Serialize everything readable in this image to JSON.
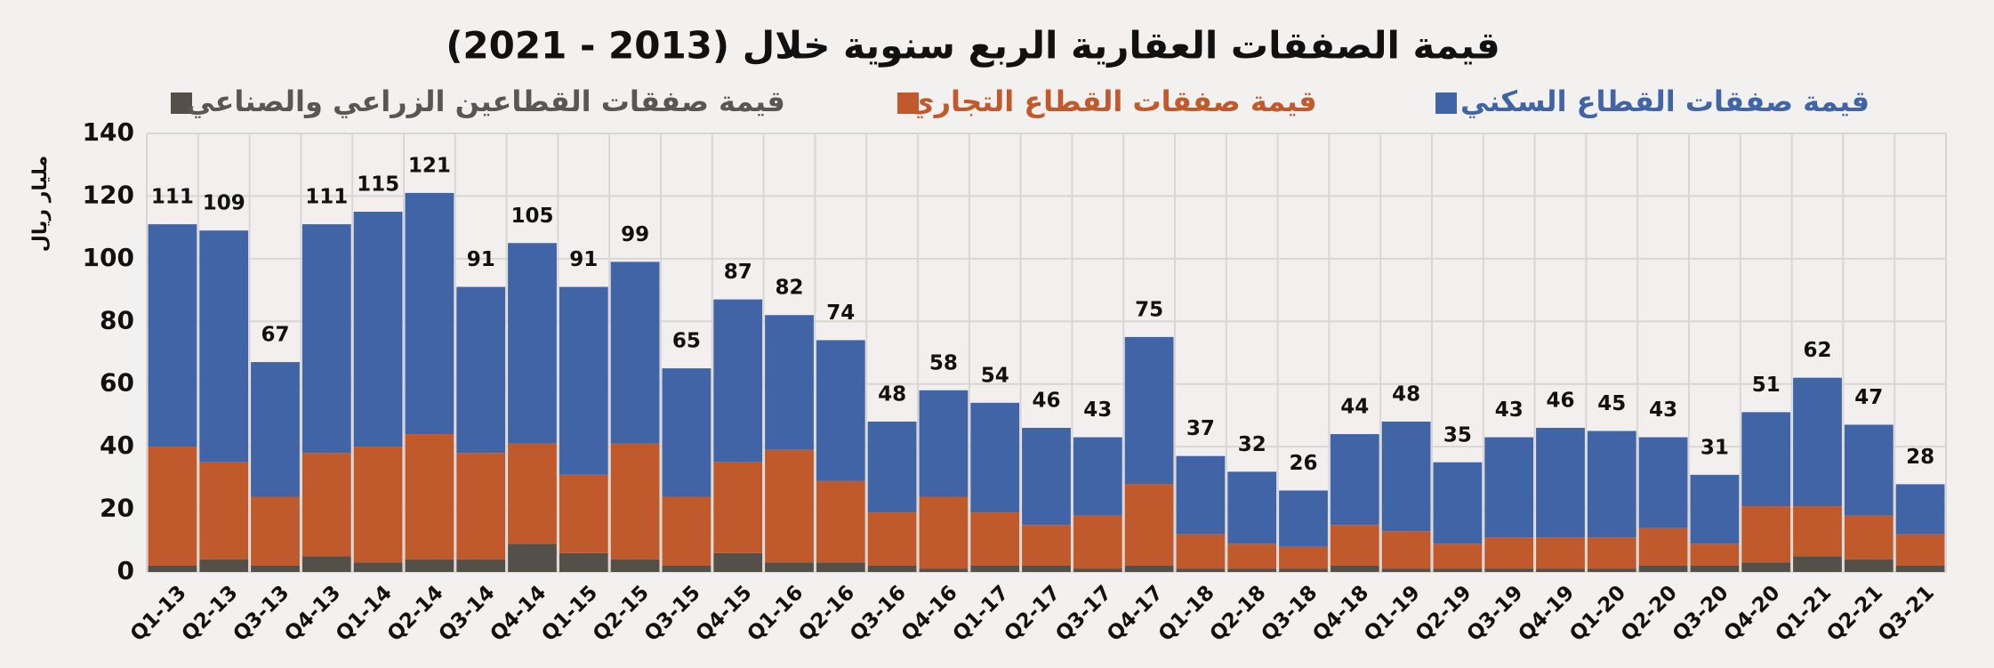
{
  "chart_data": {
    "type": "stacked_bar",
    "title": "قيمة الصفقات العقارية الربع سنوية خلال (2013 - 2021)",
    "y_label": "مليار ريال",
    "categories": [
      "Q1-13",
      "Q2-13",
      "Q3-13",
      "Q4-13",
      "Q1-14",
      "Q2-14",
      "Q3-14",
      "Q4-14",
      "Q1-15",
      "Q2-15",
      "Q3-15",
      "Q4-15",
      "Q1-16",
      "Q2-16",
      "Q3-16",
      "Q4-16",
      "Q1-17",
      "Q2-17",
      "Q3-17",
      "Q4-17",
      "Q1-18",
      "Q2-18",
      "Q3-18",
      "Q4-18",
      "Q1-19",
      "Q2-19",
      "Q3-19",
      "Q4-19",
      "Q1-20",
      "Q2-20",
      "Q3-20",
      "Q4-20",
      "Q1-21",
      "Q2-21",
      "Q3-21"
    ],
    "series": [
      {
        "name": "قيمة صفقات القطاعين الزراعي والصناعي",
        "color": "#545049",
        "values": [
          2,
          4,
          2,
          5,
          3,
          4,
          4,
          9,
          6,
          4,
          2,
          6,
          3,
          3,
          2,
          1,
          2,
          2,
          1,
          2,
          1,
          1,
          1,
          2,
          1,
          1,
          1,
          1,
          1,
          2,
          2,
          3,
          5,
          4,
          2
        ]
      },
      {
        "name": "قيمة صفقات القطاع التجاري",
        "color": "#c0592b",
        "values": [
          38,
          31,
          22,
          33,
          37,
          40,
          34,
          32,
          25,
          37,
          22,
          29,
          36,
          26,
          17,
          23,
          17,
          13,
          17,
          26,
          11,
          8,
          7,
          13,
          12,
          8,
          10,
          10,
          10,
          12,
          7,
          18,
          16,
          14,
          10
        ]
      },
      {
        "name": "قيمة صفقات القطاع السكني",
        "color": "#4064a6",
        "values": [
          71,
          74,
          43,
          73,
          75,
          77,
          53,
          64,
          60,
          58,
          41,
          52,
          43,
          45,
          29,
          34,
          35,
          31,
          25,
          47,
          25,
          23,
          18,
          29,
          35,
          26,
          32,
          35,
          34,
          29,
          22,
          30,
          41,
          29,
          16
        ]
      }
    ],
    "totals": [
      111,
      109,
      67,
      111,
      115,
      121,
      91,
      105,
      91,
      99,
      65,
      87,
      82,
      74,
      48,
      58,
      54,
      46,
      43,
      75,
      37,
      32,
      26,
      44,
      48,
      35,
      43,
      46,
      45,
      43,
      31,
      51,
      62,
      47,
      28
    ],
    "ylim": [
      0,
      140
    ],
    "yticks": [
      0,
      20,
      40,
      60,
      80,
      100,
      120,
      140
    ],
    "grid": true
  }
}
